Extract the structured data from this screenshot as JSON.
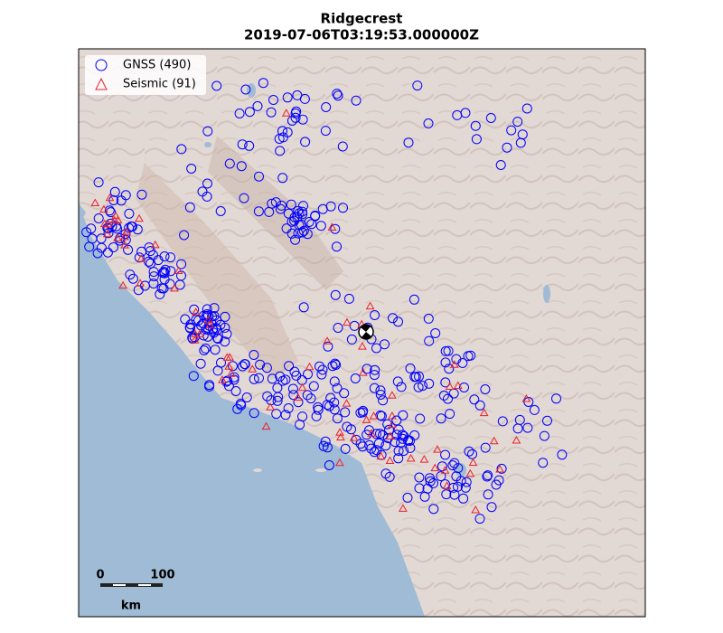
{
  "title": "Ridgecrest",
  "subtitle": "2019-07-06T03:19:53.000000Z",
  "legend": [
    {
      "label": "GNSS (490)"
    },
    {
      "label": "Seismic (91)"
    }
  ],
  "scale_bar": {
    "start": 0,
    "end": 100,
    "unit": "km"
  }
}
